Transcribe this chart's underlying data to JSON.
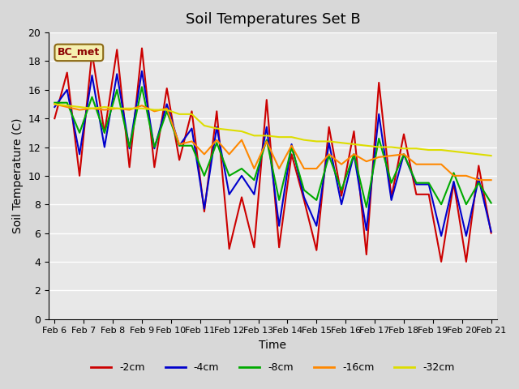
{
  "title": "Soil Temperatures Set B",
  "xlabel": "Time",
  "ylabel": "Soil Temperature (C)",
  "annotation": "BC_met",
  "ylim": [
    0,
    20
  ],
  "x_tick_labels": [
    "Feb 6",
    "Feb 7",
    "Feb 8",
    "Feb 9",
    "Feb 10",
    "Feb 11",
    "Feb 12",
    "Feb 13",
    "Feb 14",
    "Feb 15",
    "Feb 16",
    "Feb 17",
    "Feb 18",
    "Feb 19",
    "Feb 20",
    "Feb 21"
  ],
  "series": {
    "-2cm": [
      14.0,
      17.2,
      10.0,
      18.6,
      13.0,
      18.8,
      10.6,
      18.9,
      10.6,
      16.1,
      11.1,
      14.5,
      7.5,
      14.5,
      4.9,
      8.5,
      5.0,
      15.3,
      5.0,
      11.5,
      8.3,
      4.8,
      13.4,
      8.6,
      13.1,
      4.5,
      16.5,
      8.5,
      12.9,
      8.7,
      8.7,
      4.0,
      9.5,
      4.0,
      10.7,
      6.0
    ],
    "-4cm": [
      14.8,
      16.0,
      11.5,
      17.0,
      12.0,
      17.1,
      11.9,
      17.3,
      11.9,
      15.0,
      12.1,
      13.3,
      7.7,
      13.4,
      8.7,
      10.0,
      8.7,
      13.4,
      6.5,
      12.2,
      8.5,
      6.5,
      12.3,
      8.0,
      11.5,
      6.2,
      14.3,
      8.3,
      11.5,
      9.4,
      9.4,
      5.8,
      9.6,
      5.8,
      9.8,
      6.1
    ],
    "-8cm": [
      15.1,
      15.1,
      13.0,
      15.5,
      13.0,
      16.0,
      12.0,
      16.2,
      12.0,
      14.5,
      12.1,
      12.1,
      10.0,
      12.3,
      10.0,
      10.5,
      9.7,
      12.5,
      8.3,
      12.0,
      9.0,
      8.3,
      11.4,
      9.0,
      11.5,
      7.8,
      12.6,
      9.5,
      11.5,
      9.5,
      9.5,
      8.0,
      10.2,
      8.0,
      9.5,
      8.1
    ],
    "-16cm": [
      15.0,
      14.8,
      14.6,
      14.7,
      14.6,
      14.7,
      14.6,
      14.9,
      14.5,
      14.7,
      12.2,
      12.4,
      11.5,
      12.5,
      11.5,
      12.5,
      10.5,
      12.4,
      10.5,
      12.1,
      10.5,
      10.5,
      11.5,
      10.8,
      11.5,
      11.0,
      11.3,
      11.4,
      11.5,
      10.8,
      10.8,
      10.8,
      10.0,
      10.0,
      9.7,
      9.7
    ],
    "-32cm": [
      15.0,
      14.9,
      14.8,
      14.7,
      14.8,
      14.7,
      14.7,
      14.7,
      14.6,
      14.6,
      14.3,
      14.3,
      13.5,
      13.3,
      13.2,
      13.1,
      12.8,
      12.8,
      12.7,
      12.7,
      12.5,
      12.4,
      12.4,
      12.3,
      12.2,
      12.1,
      12.0,
      12.0,
      11.9,
      11.9,
      11.8,
      11.8,
      11.7,
      11.6,
      11.5,
      11.4
    ]
  },
  "colors": {
    "-2cm": "#cc0000",
    "-4cm": "#0000cc",
    "-8cm": "#00aa00",
    "-16cm": "#ff8800",
    "-32cm": "#dddd00"
  },
  "background_color": "#e8e8e8",
  "grid_color": "#ffffff",
  "n_points": 36,
  "legend_labels": [
    "-2cm",
    "-4cm",
    "-8cm",
    "-16cm",
    "-32cm"
  ]
}
